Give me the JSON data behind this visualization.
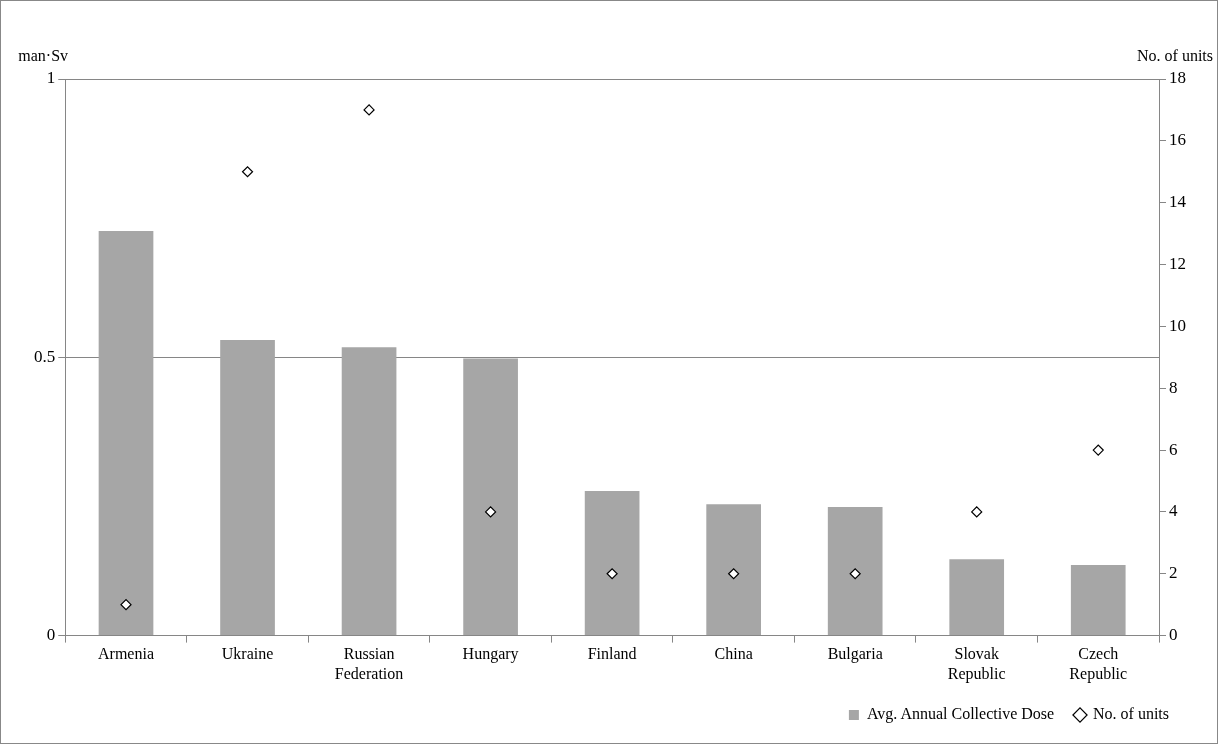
{
  "chart_data": {
    "type": "bar",
    "categories": [
      "Armenia",
      "Ukraine",
      "Russian Federation",
      "Hungary",
      "Finland",
      "China",
      "Bulgaria",
      "Slovak Republic",
      "Czech Republic"
    ],
    "series": [
      {
        "name": "Avg. Annual Collective Dose",
        "color": "#a6a6a6",
        "values": [
          0.727,
          0.531,
          0.518,
          0.498,
          0.26,
          0.236,
          0.231,
          0.137,
          0.127
        ]
      },
      {
        "name": "No. of units",
        "type": "scatter",
        "axis": "y2",
        "color": "#000000",
        "marker": "diamond",
        "values": [
          1,
          15,
          17,
          4,
          2,
          2,
          2,
          4,
          6
        ]
      }
    ],
    "ylabel": "man·Sv",
    "y2label": "No. of units",
    "ylim": [
      0,
      1
    ],
    "yticks": [
      0,
      0.5,
      1
    ],
    "y2lim": [
      0,
      18
    ],
    "y2ticks": [
      0,
      2,
      4,
      6,
      8,
      10,
      12,
      14,
      16,
      18
    ],
    "grid": "y",
    "legend": "bottom right"
  }
}
